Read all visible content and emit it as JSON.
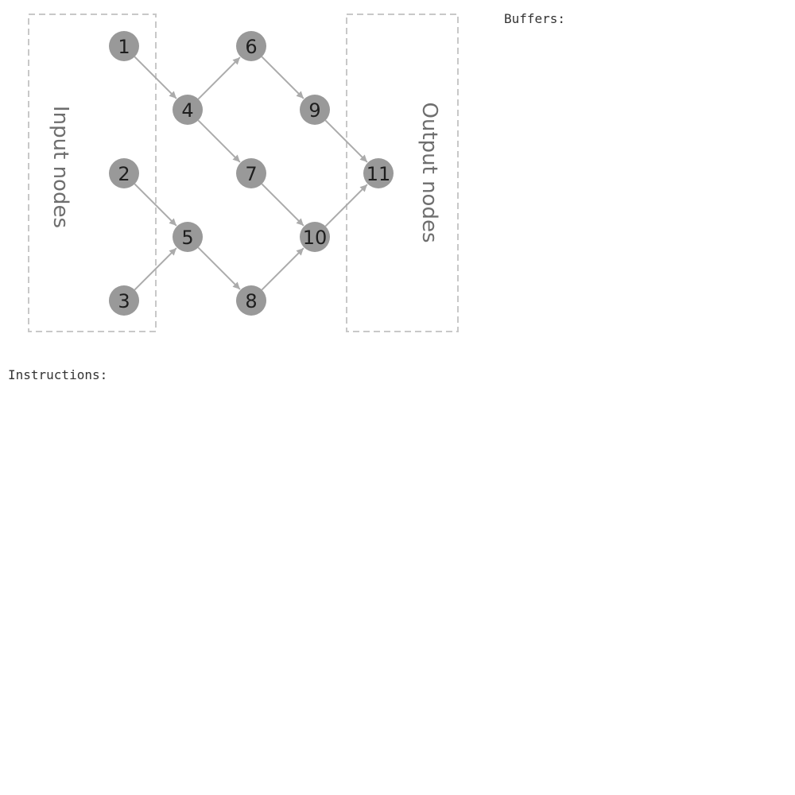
{
  "graph": {
    "groups": [
      {
        "id": "input",
        "label": "Input nodes"
      },
      {
        "id": "output",
        "label": "Output nodes"
      }
    ],
    "nodes": [
      {
        "id": 1,
        "label": "1"
      },
      {
        "id": 2,
        "label": "2"
      },
      {
        "id": 3,
        "label": "3"
      },
      {
        "id": 4,
        "label": "4"
      },
      {
        "id": 5,
        "label": "5"
      },
      {
        "id": 6,
        "label": "6"
      },
      {
        "id": 7,
        "label": "7"
      },
      {
        "id": 8,
        "label": "8"
      },
      {
        "id": 9,
        "label": "9"
      },
      {
        "id": 10,
        "label": "10"
      },
      {
        "id": 11,
        "label": "11"
      }
    ],
    "edges": [
      {
        "from": 1,
        "to": 4
      },
      {
        "from": 2,
        "to": 5
      },
      {
        "from": 3,
        "to": 5
      },
      {
        "from": 4,
        "to": 6
      },
      {
        "from": 4,
        "to": 7
      },
      {
        "from": 5,
        "to": 8
      },
      {
        "from": 6,
        "to": 9
      },
      {
        "from": 7,
        "to": 10
      },
      {
        "from": 8,
        "to": 10
      },
      {
        "from": 9,
        "to": 11
      },
      {
        "from": 10,
        "to": 11
      }
    ],
    "colors": {
      "node_fill": "#999999",
      "node_text": "#1e1e1e",
      "edge": "#ababab",
      "group_border": "#c8c8c8",
      "group_text": "#6e6e6e"
    }
  },
  "buffers": {
    "label": "Buffers:"
  },
  "instructions": {
    "label": "Instructions:"
  }
}
